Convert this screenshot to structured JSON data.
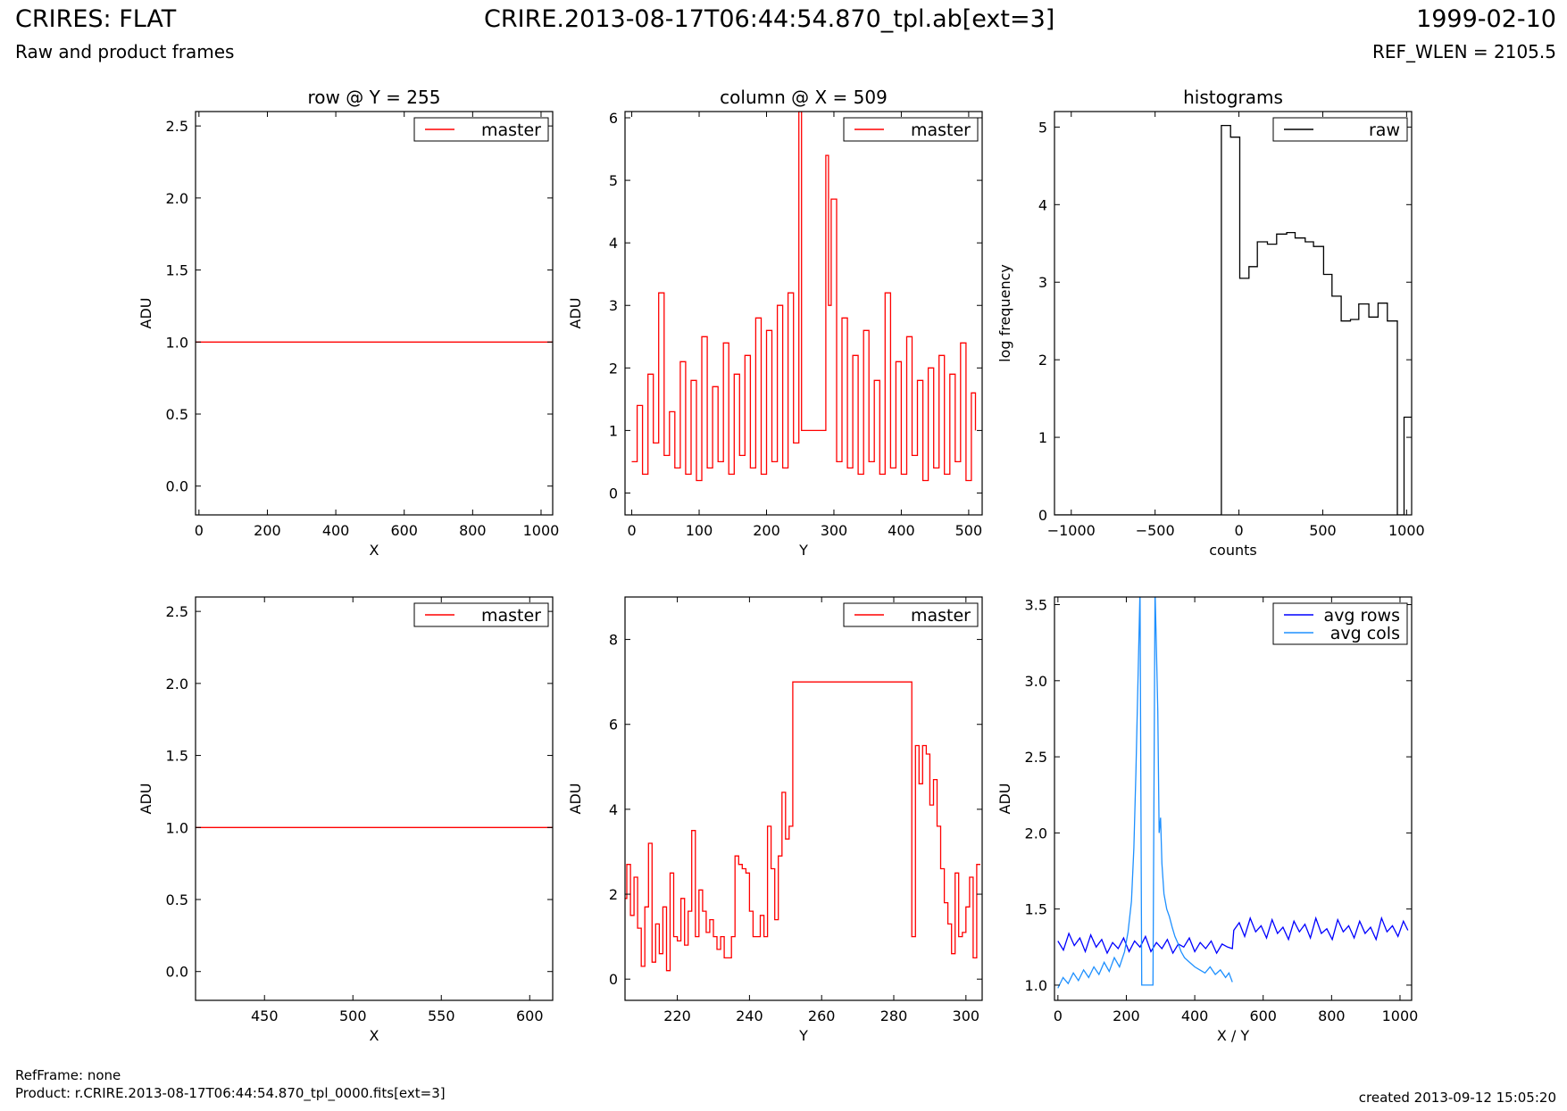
{
  "header": {
    "title": "CRIRES: FLAT",
    "subtitle": "Raw and product frames",
    "file": "CRIRE.2013-08-17T06:44:54.870_tpl.ab[ext=3]",
    "date": "1999-02-10",
    "ref_wlen": "REF_WLEN = 2105.5"
  },
  "footer": {
    "refframe": "RefFrame: none",
    "product": "Product: r.CRIRE.2013-08-17T06:44:54.870_tpl_0000.fits[ext=3]",
    "created": "created 2013-09-12 15:05:20"
  },
  "colors": {
    "master": "#ff0000",
    "raw": "#000000",
    "avg_rows": "#0000ff",
    "avg_cols": "#1e90ff"
  },
  "chart_data": [
    {
      "type": "line",
      "title": "row @ Y = 255",
      "xlabel": "X",
      "ylabel": "ADU",
      "xlim": [
        -10,
        1034
      ],
      "ylim": [
        -0.2,
        2.6
      ],
      "xticks": [
        0,
        200,
        400,
        600,
        800,
        1000
      ],
      "xtick_labels": [
        "0",
        "200",
        "400",
        "600",
        "800",
        "1000"
      ],
      "yticks": [
        0,
        0.5,
        1,
        1.5,
        2,
        2.5
      ],
      "ytick_labels": [
        "0.0",
        "0.5",
        "1.0",
        "1.5",
        "2.0",
        "2.5"
      ],
      "legend": "top-right",
      "series": [
        {
          "name": "master",
          "color": "#ff0000",
          "step": false,
          "x": [
            -10,
            1034
          ],
          "y": [
            1.0,
            1.0
          ]
        }
      ]
    },
    {
      "type": "line",
      "title": "column @ X = 509",
      "xlabel": "Y",
      "ylabel": "ADU",
      "xlim": [
        -10,
        520
      ],
      "ylim": [
        -0.35,
        6.1
      ],
      "xticks": [
        0,
        100,
        200,
        300,
        400,
        500
      ],
      "xtick_labels": [
        "0",
        "100",
        "200",
        "300",
        "400",
        "500"
      ],
      "yticks": [
        0,
        1,
        2,
        3,
        4,
        5,
        6
      ],
      "ytick_labels": [
        "0",
        "1",
        "2",
        "3",
        "4",
        "5",
        "6"
      ],
      "legend": "top-right",
      "series": [
        {
          "name": "master",
          "color": "#ff0000",
          "step": true,
          "x": [
            0,
            8,
            16,
            24,
            32,
            40,
            48,
            56,
            64,
            72,
            80,
            88,
            96,
            104,
            112,
            120,
            128,
            136,
            144,
            152,
            160,
            168,
            176,
            184,
            192,
            200,
            208,
            216,
            224,
            232,
            240,
            248,
            252,
            285,
            288,
            292,
            296,
            304,
            312,
            320,
            328,
            336,
            344,
            352,
            360,
            368,
            376,
            384,
            392,
            400,
            408,
            416,
            424,
            432,
            440,
            448,
            456,
            464,
            472,
            480,
            488,
            496,
            504,
            510
          ],
          "y": [
            0.5,
            1.4,
            0.3,
            1.9,
            0.8,
            3.2,
            0.6,
            1.3,
            0.4,
            2.1,
            0.3,
            1.8,
            0.2,
            2.5,
            0.4,
            1.7,
            0.5,
            2.4,
            0.3,
            1.9,
            0.6,
            2.2,
            0.4,
            2.8,
            0.3,
            2.6,
            0.5,
            3.0,
            0.4,
            3.2,
            0.8,
            6.1,
            1.0,
            1.0,
            5.4,
            3.0,
            4.7,
            0.5,
            2.8,
            0.4,
            2.2,
            0.3,
            2.6,
            0.5,
            1.8,
            0.3,
            3.2,
            0.4,
            2.1,
            0.3,
            2.5,
            0.6,
            1.8,
            0.2,
            2.0,
            0.4,
            2.2,
            0.3,
            1.9,
            0.5,
            2.4,
            0.2,
            1.6,
            1.0
          ]
        }
      ]
    },
    {
      "type": "line",
      "title": "histograms",
      "xlabel": "counts",
      "ylabel": "log frequency",
      "xlim": [
        -1100,
        1030
      ],
      "ylim": [
        0,
        5.2
      ],
      "xticks": [
        -1000,
        -500,
        0,
        500,
        1000
      ],
      "xtick_labels": [
        "−1000",
        "−500",
        "0",
        "500",
        "1000"
      ],
      "yticks": [
        0,
        1,
        2,
        3,
        4,
        5
      ],
      "ytick_labels": [
        "0",
        "1",
        "2",
        "3",
        "4",
        "5"
      ],
      "legend": "top-right",
      "series": [
        {
          "name": "raw",
          "color": "#000000",
          "step": true,
          "x": [
            -1100,
            -105,
            -50,
            5,
            60,
            110,
            170,
            225,
            285,
            335,
            395,
            445,
            505,
            555,
            610,
            665,
            715,
            775,
            830,
            885,
            945,
            985,
            1030
          ],
          "y": [
            0,
            5.02,
            4.87,
            3.05,
            3.2,
            3.52,
            3.49,
            3.62,
            3.64,
            3.57,
            3.52,
            3.46,
            3.1,
            2.82,
            2.5,
            2.52,
            2.72,
            2.55,
            2.73,
            2.5,
            0,
            1.26,
            1.26
          ]
        }
      ]
    },
    {
      "type": "line",
      "title": "",
      "xlabel": "X",
      "ylabel": "ADU",
      "xlim": [
        411,
        613
      ],
      "ylim": [
        -0.2,
        2.6
      ],
      "xticks": [
        450,
        500,
        550,
        600
      ],
      "xtick_labels": [
        "450",
        "500",
        "550",
        "600"
      ],
      "yticks": [
        0,
        0.5,
        1,
        1.5,
        2,
        2.5
      ],
      "ytick_labels": [
        "0.0",
        "0.5",
        "1.0",
        "1.5",
        "2.0",
        "2.5"
      ],
      "legend": "top-right",
      "series": [
        {
          "name": "master",
          "color": "#ff0000",
          "step": false,
          "x": [
            411,
            613
          ],
          "y": [
            1.0,
            1.0
          ]
        }
      ]
    },
    {
      "type": "line",
      "title": "",
      "xlabel": "Y",
      "ylabel": "ADU",
      "xlim": [
        205.5,
        304.5
      ],
      "ylim": [
        -0.5,
        9
      ],
      "xticks": [
        220,
        240,
        260,
        280,
        300
      ],
      "xtick_labels": [
        "220",
        "240",
        "260",
        "280",
        "300"
      ],
      "yticks": [
        0,
        2,
        4,
        6,
        8
      ],
      "ytick_labels": [
        "0",
        "2",
        "4",
        "6",
        "8"
      ],
      "legend": "top-right",
      "series": [
        {
          "name": "master",
          "color": "#ff0000",
          "step": true,
          "x": [
            205.5,
            206,
            207,
            208,
            209,
            210,
            211,
            212,
            213,
            214,
            215,
            216,
            217,
            218,
            219,
            220,
            221,
            222,
            223,
            224,
            225,
            226,
            227,
            228,
            229,
            230,
            231,
            232,
            233,
            234,
            235,
            236,
            237,
            238,
            239,
            240,
            241,
            242,
            243,
            244,
            245,
            246,
            247,
            248,
            249,
            250,
            251,
            252,
            285,
            286,
            287,
            288,
            289,
            290,
            291,
            292,
            293,
            294,
            295,
            296,
            297,
            298,
            299,
            300,
            301,
            302,
            303,
            304
          ],
          "y": [
            1.9,
            2.7,
            1.5,
            2.4,
            1.2,
            0.3,
            1.7,
            3.2,
            0.4,
            1.3,
            0.6,
            1.7,
            0.2,
            2.5,
            1.0,
            0.9,
            1.9,
            0.8,
            1.6,
            3.5,
            1.0,
            2.1,
            1.6,
            1.1,
            1.4,
            1.0,
            0.7,
            1.0,
            0.5,
            0.5,
            1.0,
            2.9,
            2.7,
            2.6,
            2.5,
            1.6,
            1.0,
            1.0,
            1.5,
            1.0,
            3.6,
            2.6,
            1.4,
            2.9,
            4.4,
            3.3,
            3.6,
            7.0,
            1.0,
            5.5,
            4.6,
            5.5,
            5.3,
            4.1,
            4.7,
            3.6,
            2.6,
            1.8,
            1.3,
            0.6,
            2.5,
            1.0,
            1.1,
            1.7,
            2.4,
            0.5,
            2.7,
            2.7
          ]
        }
      ]
    },
    {
      "type": "line",
      "title": "",
      "xlabel": "X / Y",
      "ylabel": "ADU",
      "xlim": [
        -10,
        1034
      ],
      "ylim": [
        0.9,
        3.55
      ],
      "xticks": [
        0,
        200,
        400,
        600,
        800,
        1000
      ],
      "xtick_labels": [
        "0",
        "200",
        "400",
        "600",
        "800",
        "1000"
      ],
      "yticks": [
        1.0,
        1.5,
        2.0,
        2.5,
        3.0,
        3.5
      ],
      "ytick_labels": [
        "1.0",
        "1.5",
        "2.0",
        "2.5",
        "3.0",
        "3.5"
      ],
      "legend": "top-right",
      "series": [
        {
          "name": "avg rows",
          "color": "#0000ff",
          "step": false,
          "x": [
            0,
            16,
            32,
            48,
            64,
            80,
            96,
            112,
            128,
            144,
            160,
            176,
            192,
            208,
            224,
            240,
            256,
            272,
            288,
            304,
            320,
            336,
            352,
            368,
            384,
            400,
            416,
            432,
            448,
            464,
            480,
            496,
            510,
            514,
            530,
            546,
            562,
            578,
            594,
            610,
            626,
            642,
            658,
            674,
            690,
            706,
            722,
            738,
            754,
            770,
            786,
            802,
            818,
            834,
            850,
            866,
            882,
            898,
            914,
            930,
            946,
            962,
            978,
            994,
            1010,
            1023
          ],
          "y": [
            1.29,
            1.23,
            1.34,
            1.26,
            1.31,
            1.22,
            1.33,
            1.25,
            1.3,
            1.21,
            1.28,
            1.24,
            1.31,
            1.22,
            1.29,
            1.25,
            1.32,
            1.22,
            1.28,
            1.24,
            1.3,
            1.21,
            1.27,
            1.25,
            1.31,
            1.22,
            1.28,
            1.24,
            1.29,
            1.21,
            1.27,
            1.25,
            1.24,
            1.36,
            1.41,
            1.32,
            1.44,
            1.35,
            1.39,
            1.31,
            1.43,
            1.34,
            1.38,
            1.3,
            1.42,
            1.35,
            1.4,
            1.31,
            1.44,
            1.34,
            1.37,
            1.3,
            1.43,
            1.35,
            1.39,
            1.31,
            1.42,
            1.34,
            1.38,
            1.3,
            1.44,
            1.35,
            1.39,
            1.32,
            1.42,
            1.36
          ]
        },
        {
          "name": "avg cols",
          "color": "#1e90ff",
          "step": false,
          "x": [
            0,
            15,
            30,
            45,
            60,
            75,
            90,
            105,
            120,
            135,
            150,
            165,
            180,
            195,
            205,
            215,
            222,
            228,
            234,
            240,
            245,
            250,
            258,
            270,
            278,
            284,
            288,
            292,
            296,
            300,
            304,
            310,
            318,
            326,
            334,
            342,
            350,
            360,
            370,
            385,
            400,
            415,
            430,
            445,
            460,
            475,
            490,
            500,
            510
          ],
          "y": [
            0.98,
            1.05,
            1.01,
            1.08,
            1.03,
            1.1,
            1.05,
            1.12,
            1.07,
            1.15,
            1.09,
            1.18,
            1.12,
            1.22,
            1.35,
            1.55,
            1.9,
            2.4,
            3.0,
            3.6,
            1.0,
            1.0,
            1.0,
            1.0,
            1.0,
            3.6,
            3.2,
            2.8,
            2.0,
            2.1,
            1.8,
            1.6,
            1.5,
            1.45,
            1.38,
            1.32,
            1.28,
            1.22,
            1.18,
            1.15,
            1.12,
            1.1,
            1.08,
            1.12,
            1.07,
            1.1,
            1.05,
            1.08,
            1.02
          ]
        }
      ]
    }
  ]
}
